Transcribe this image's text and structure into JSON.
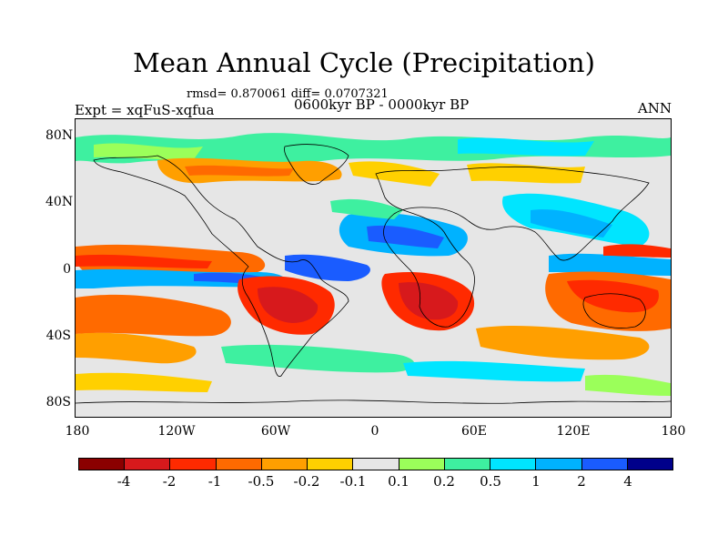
{
  "title": "Mean Annual Cycle (Precipitation)",
  "stats": "rmsd= 0.870061 diff= 0.0707321",
  "period": "0600kyr BP - 0000kyr BP",
  "experiment": "Expt = xqFuS-xqfua",
  "season": "ANN",
  "lat_labels": [
    "80N",
    "40N",
    "0",
    "40S",
    "80S"
  ],
  "lon_labels": [
    "180",
    "120W",
    "60W",
    "0",
    "60E",
    "120E",
    "180"
  ],
  "colorbar": {
    "colors": [
      "#8b0000",
      "#d7191c",
      "#ff2a00",
      "#ff6a00",
      "#ff9f00",
      "#ffd000",
      "#e6e6e6",
      "#9bff5a",
      "#3ef0a0",
      "#00e5ff",
      "#00b2ff",
      "#1a5cff",
      "#00008b"
    ],
    "labels": [
      "-4",
      "-2",
      "-1",
      "-0.5",
      "-0.2",
      "-0.1",
      "0.1",
      "0.2",
      "0.5",
      "1",
      "2",
      "4"
    ]
  }
}
